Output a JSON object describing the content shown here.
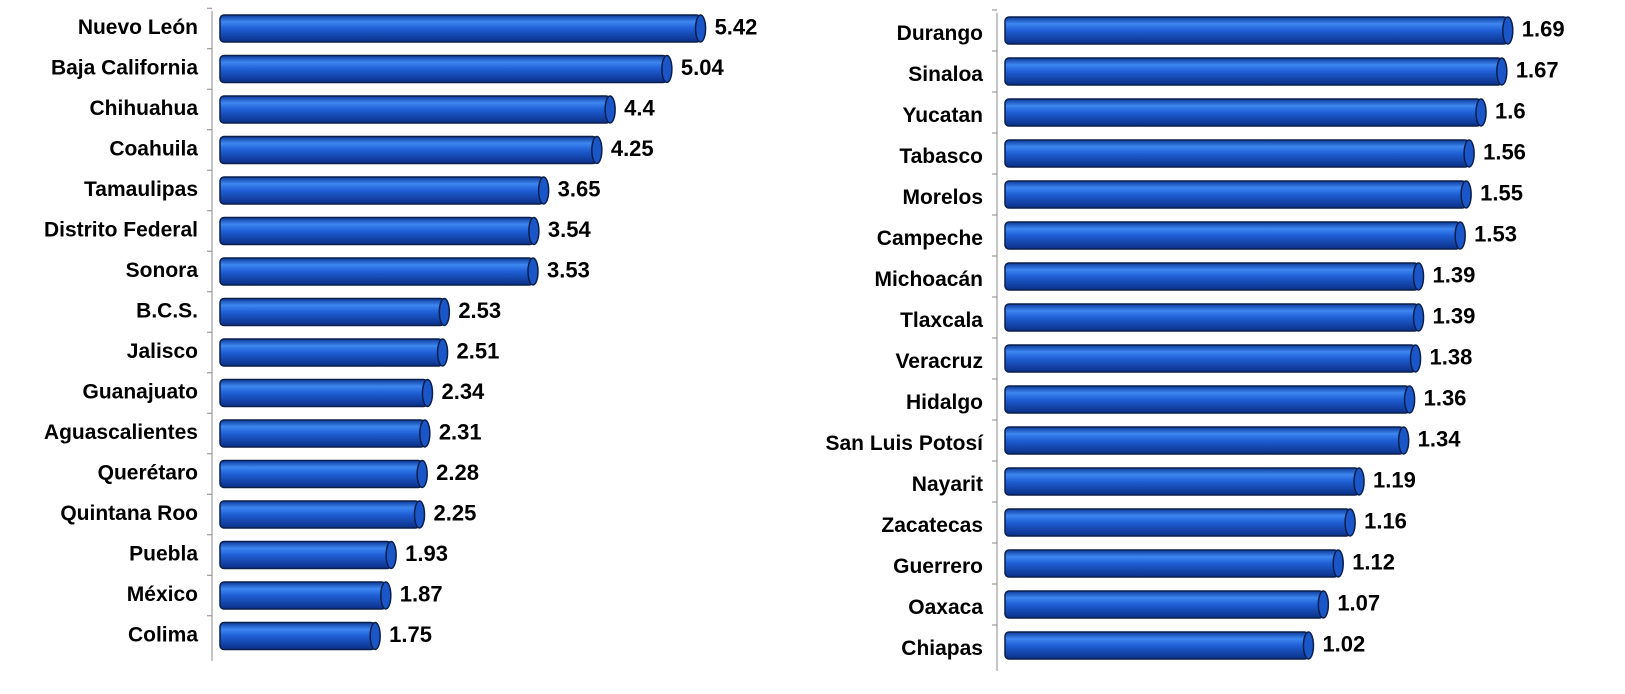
{
  "chart_data": [
    {
      "type": "bar",
      "orientation": "horizontal",
      "color": "#1f5fd6",
      "xlim": [
        0,
        6
      ],
      "categories": [
        "Nuevo León",
        "Baja California",
        "Chihuahua",
        "Coahuila",
        "Tamaulipas",
        "Distrito Federal",
        "Sonora",
        "B.C.S.",
        "Jalisco",
        "Guanajuato",
        "Aguascalientes",
        "Querétaro",
        "Quintana Roo",
        "Puebla",
        "México",
        "Colima"
      ],
      "values": [
        5.42,
        5.04,
        4.4,
        4.25,
        3.65,
        3.54,
        3.53,
        2.53,
        2.51,
        2.34,
        2.31,
        2.28,
        2.25,
        1.93,
        1.87,
        1.75
      ]
    },
    {
      "type": "bar",
      "orientation": "horizontal",
      "color": "#1f5fd6",
      "xlim": [
        0,
        2
      ],
      "categories": [
        "Durango",
        "Sinaloa",
        "Yucatan",
        "Tabasco",
        "Morelos",
        "Campeche",
        "Michoacán",
        "Tlaxcala",
        "Veracruz",
        "Hidalgo",
        "San Luis Potosí",
        "Nayarit",
        "Zacatecas",
        "Guerrero",
        "Oaxaca",
        "Chiapas"
      ],
      "values": [
        1.69,
        1.67,
        1.6,
        1.56,
        1.55,
        1.53,
        1.39,
        1.39,
        1.38,
        1.36,
        1.34,
        1.19,
        1.16,
        1.12,
        1.07,
        1.02
      ]
    }
  ]
}
